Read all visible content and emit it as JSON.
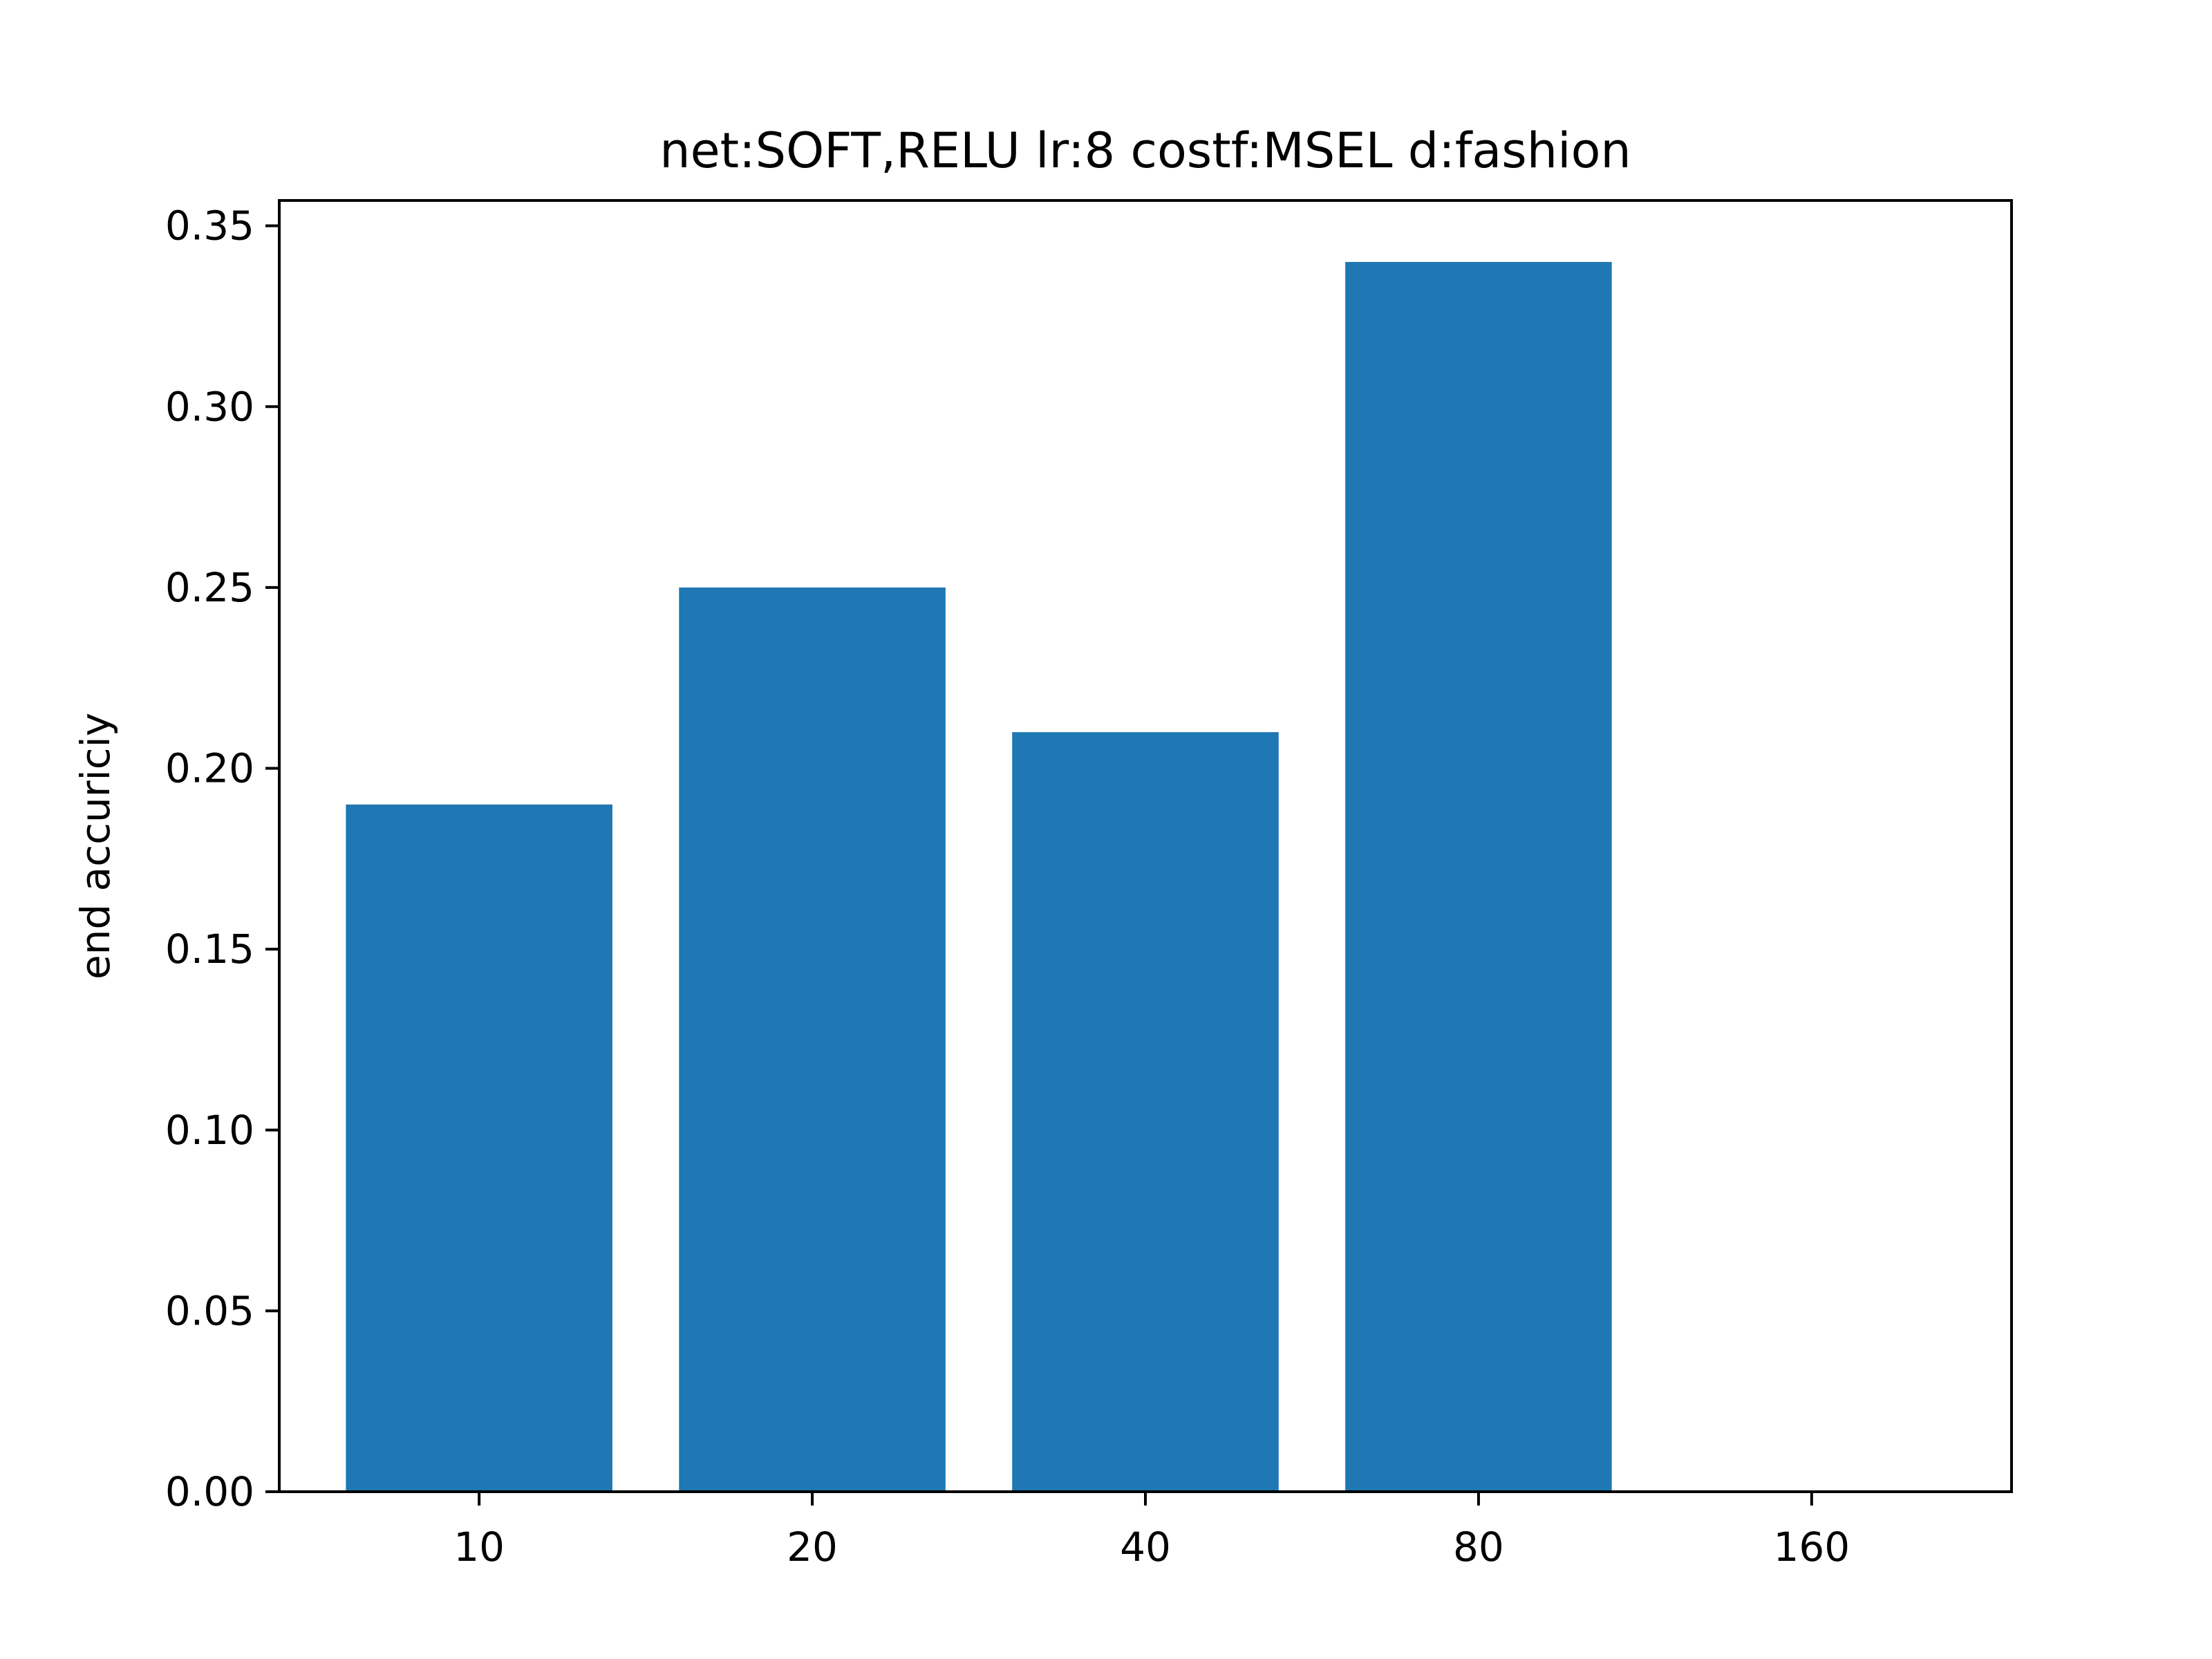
{
  "chart_data": {
    "type": "bar",
    "title": "net:SOFT,RELU lr:8 costf:MSEL d:fashion",
    "xlabel": "",
    "ylabel": "end accuriciy",
    "categories": [
      "10",
      "20",
      "40",
      "80",
      "160"
    ],
    "values": [
      0.19,
      0.25,
      0.21,
      0.34,
      0
    ],
    "ylim": [
      0,
      0.357
    ],
    "yticks": [
      "0.00",
      "0.05",
      "0.10",
      "0.15",
      "0.20",
      "0.25",
      "0.30",
      "0.35"
    ],
    "grid": false,
    "legend": null,
    "bar_color": "#1f77b4"
  }
}
